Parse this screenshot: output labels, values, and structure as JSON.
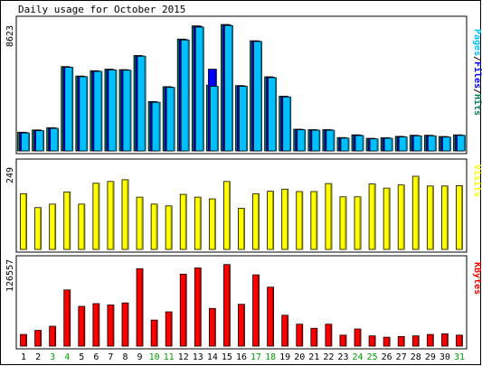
{
  "chart_data": {
    "type": "bar",
    "title": "Daily usage for October 2015",
    "days": [
      "1",
      "2",
      "3",
      "4",
      "5",
      "6",
      "7",
      "8",
      "9",
      "10",
      "11",
      "12",
      "13",
      "14",
      "15",
      "16",
      "17",
      "18",
      "19",
      "20",
      "21",
      "22",
      "23",
      "24",
      "25",
      "26",
      "27",
      "28",
      "29",
      "30",
      "31"
    ],
    "weekend_days": [
      "3",
      "4",
      "10",
      "11",
      "17",
      "18",
      "24",
      "25",
      "31"
    ],
    "panels": [
      {
        "id": "pages",
        "max_label": "8623",
        "ymax": 8623,
        "series": [
          {
            "name": "Hits",
            "color": "#00805c",
            "values": [
              1230,
              1380,
              1530,
              5550,
              4930,
              5280,
              5380,
              5350,
              6280,
              3250,
              4230,
              7360,
              8230,
              4330,
              8320,
              4300,
              7250,
              4880,
              3600,
              1430,
              1400,
              1400,
              880,
              1060,
              830,
              870,
              960,
              1030,
              1030,
              950,
              1060
            ]
          },
          {
            "name": "Files",
            "color": "#0000ff",
            "values": [
              1210,
              1360,
              1510,
              5520,
              4900,
              5250,
              5350,
              5330,
              6250,
              3220,
              4200,
              7330,
              8200,
              5380,
              8290,
              4280,
              7230,
              4850,
              3570,
              1410,
              1380,
              1380,
              860,
              1040,
              810,
              850,
              940,
              1010,
              1010,
              930,
              1040
            ]
          },
          {
            "name": "Pages",
            "color": "#00c0ff",
            "values": [
              1180,
              1330,
              1480,
              5500,
              4880,
              5230,
              5330,
              5310,
              6230,
              3200,
              4180,
              7300,
              8150,
              4250,
              8250,
              4250,
              7200,
              4820,
              3550,
              1390,
              1360,
              1360,
              840,
              1010,
              790,
              830,
              920,
              990,
              990,
              910,
              1020
            ]
          }
        ],
        "legend": [
          "Pages",
          "Files",
          "Hits"
        ]
      },
      {
        "id": "visits",
        "max_label": "249",
        "ymax": 249,
        "series": [
          {
            "name": "Visits",
            "color": "#ffff00",
            "values": [
              160,
              120,
              130,
              165,
              130,
              190,
              195,
              200,
              150,
              130,
              125,
              158,
              150,
              145,
              195,
              118,
              160,
              167,
              173,
              166,
              166,
              189,
              151,
              151,
              188,
              176,
              185,
              210,
              182,
              182,
              183
            ]
          }
        ],
        "legend": [
          "Visits"
        ]
      },
      {
        "id": "kbytes",
        "max_label": "126557",
        "ymax": 126557,
        "series": [
          {
            "name": "KBytes",
            "color": "#ff0000",
            "values": [
              17000,
              23000,
              29000,
              82000,
              58000,
              62000,
              60000,
              63000,
              113000,
              38000,
              50000,
              105000,
              114000,
              55000,
              119000,
              61000,
              104000,
              86000,
              45000,
              32000,
              26000,
              32000,
              16000,
              25000,
              15000,
              13000,
              14000,
              15000,
              17000,
              18000,
              16000
            ]
          }
        ],
        "legend": [
          "KBytes"
        ]
      }
    ]
  }
}
